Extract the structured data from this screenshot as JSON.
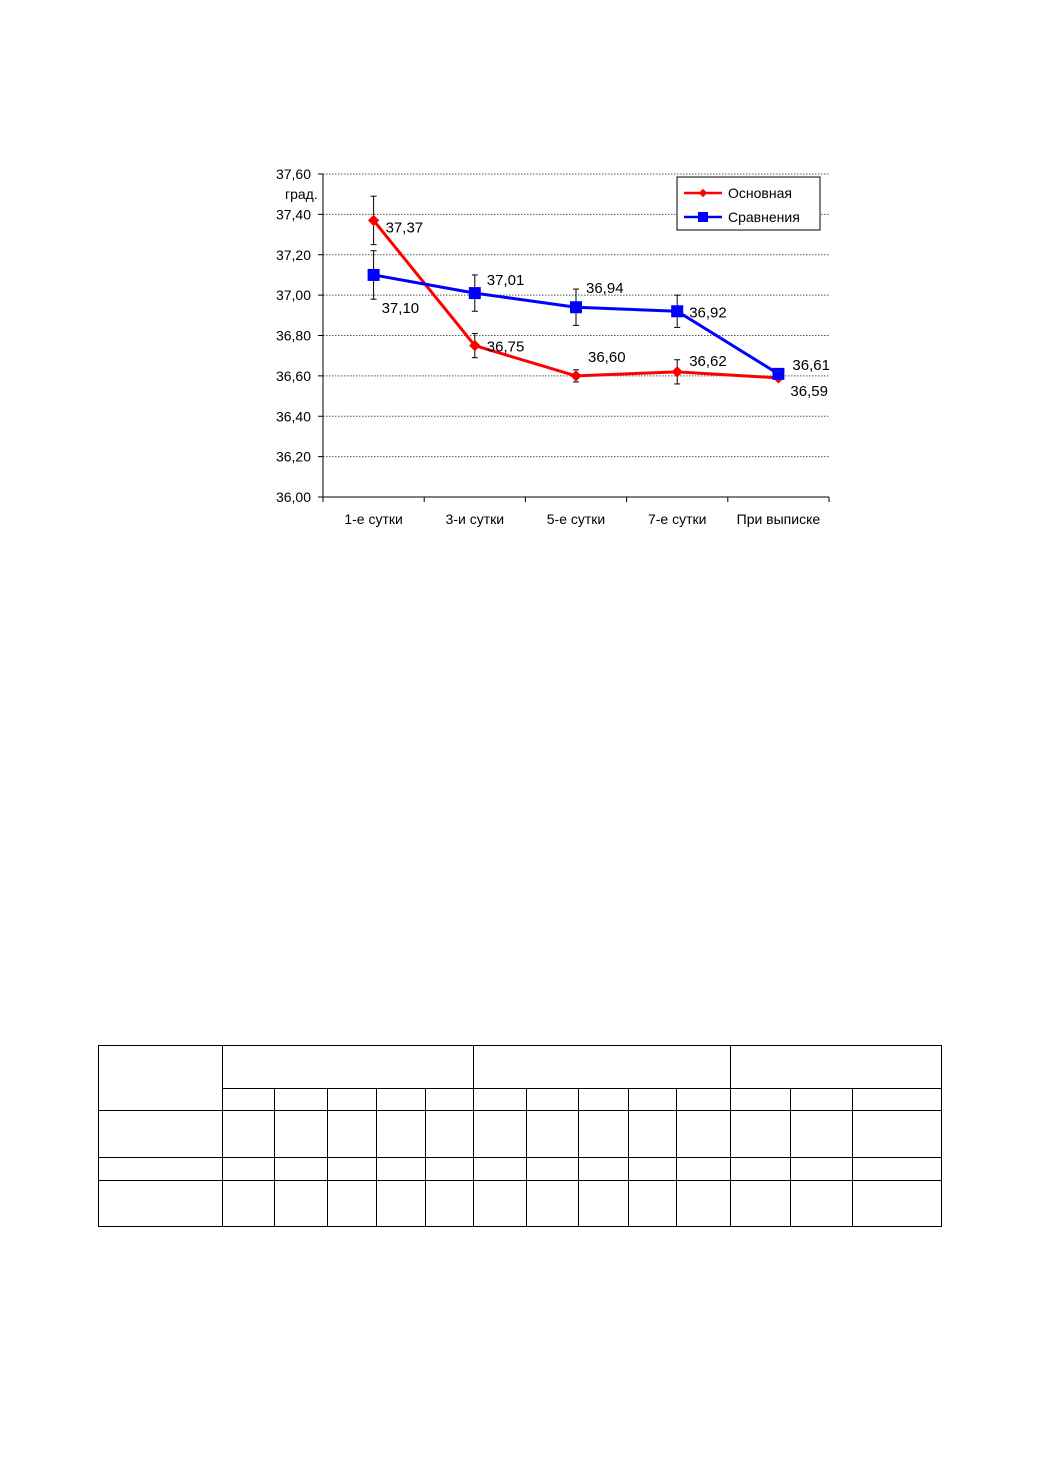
{
  "chart_data": {
    "type": "line",
    "title": "",
    "ylabel": "град.",
    "xlabel": "",
    "ylim": [
      36.0,
      37.6
    ],
    "ytick_step": 0.2,
    "y_tick_labels": [
      "36,00",
      "36,20",
      "36,40",
      "36,60",
      "36,80",
      "37,00",
      "37,20",
      "37,40",
      "37,60"
    ],
    "grid": true,
    "legend_position": "top-right",
    "categories": [
      "1-е сутки",
      "3-и сутки",
      "5-е сутки",
      "7-е сутки",
      "При выписке"
    ],
    "series": [
      {
        "name": "Основная",
        "color": "#ff0000",
        "marker": "diamond",
        "values": [
          37.37,
          36.75,
          36.6,
          36.62,
          36.59
        ],
        "labels": [
          "37,37",
          "36,75",
          "36,60",
          "36,62",
          "36,59"
        ],
        "error": [
          0.12,
          0.06,
          0.03,
          0.06,
          null
        ]
      },
      {
        "name": "Сравнения",
        "color": "#0000ff",
        "marker": "square",
        "values": [
          37.1,
          37.01,
          36.94,
          36.92,
          36.61
        ],
        "labels": [
          "37,10",
          "37,01",
          "36,94",
          "36,92",
          "36,61"
        ],
        "error": [
          0.12,
          0.09,
          0.09,
          0.08,
          null
        ]
      }
    ]
  }
}
